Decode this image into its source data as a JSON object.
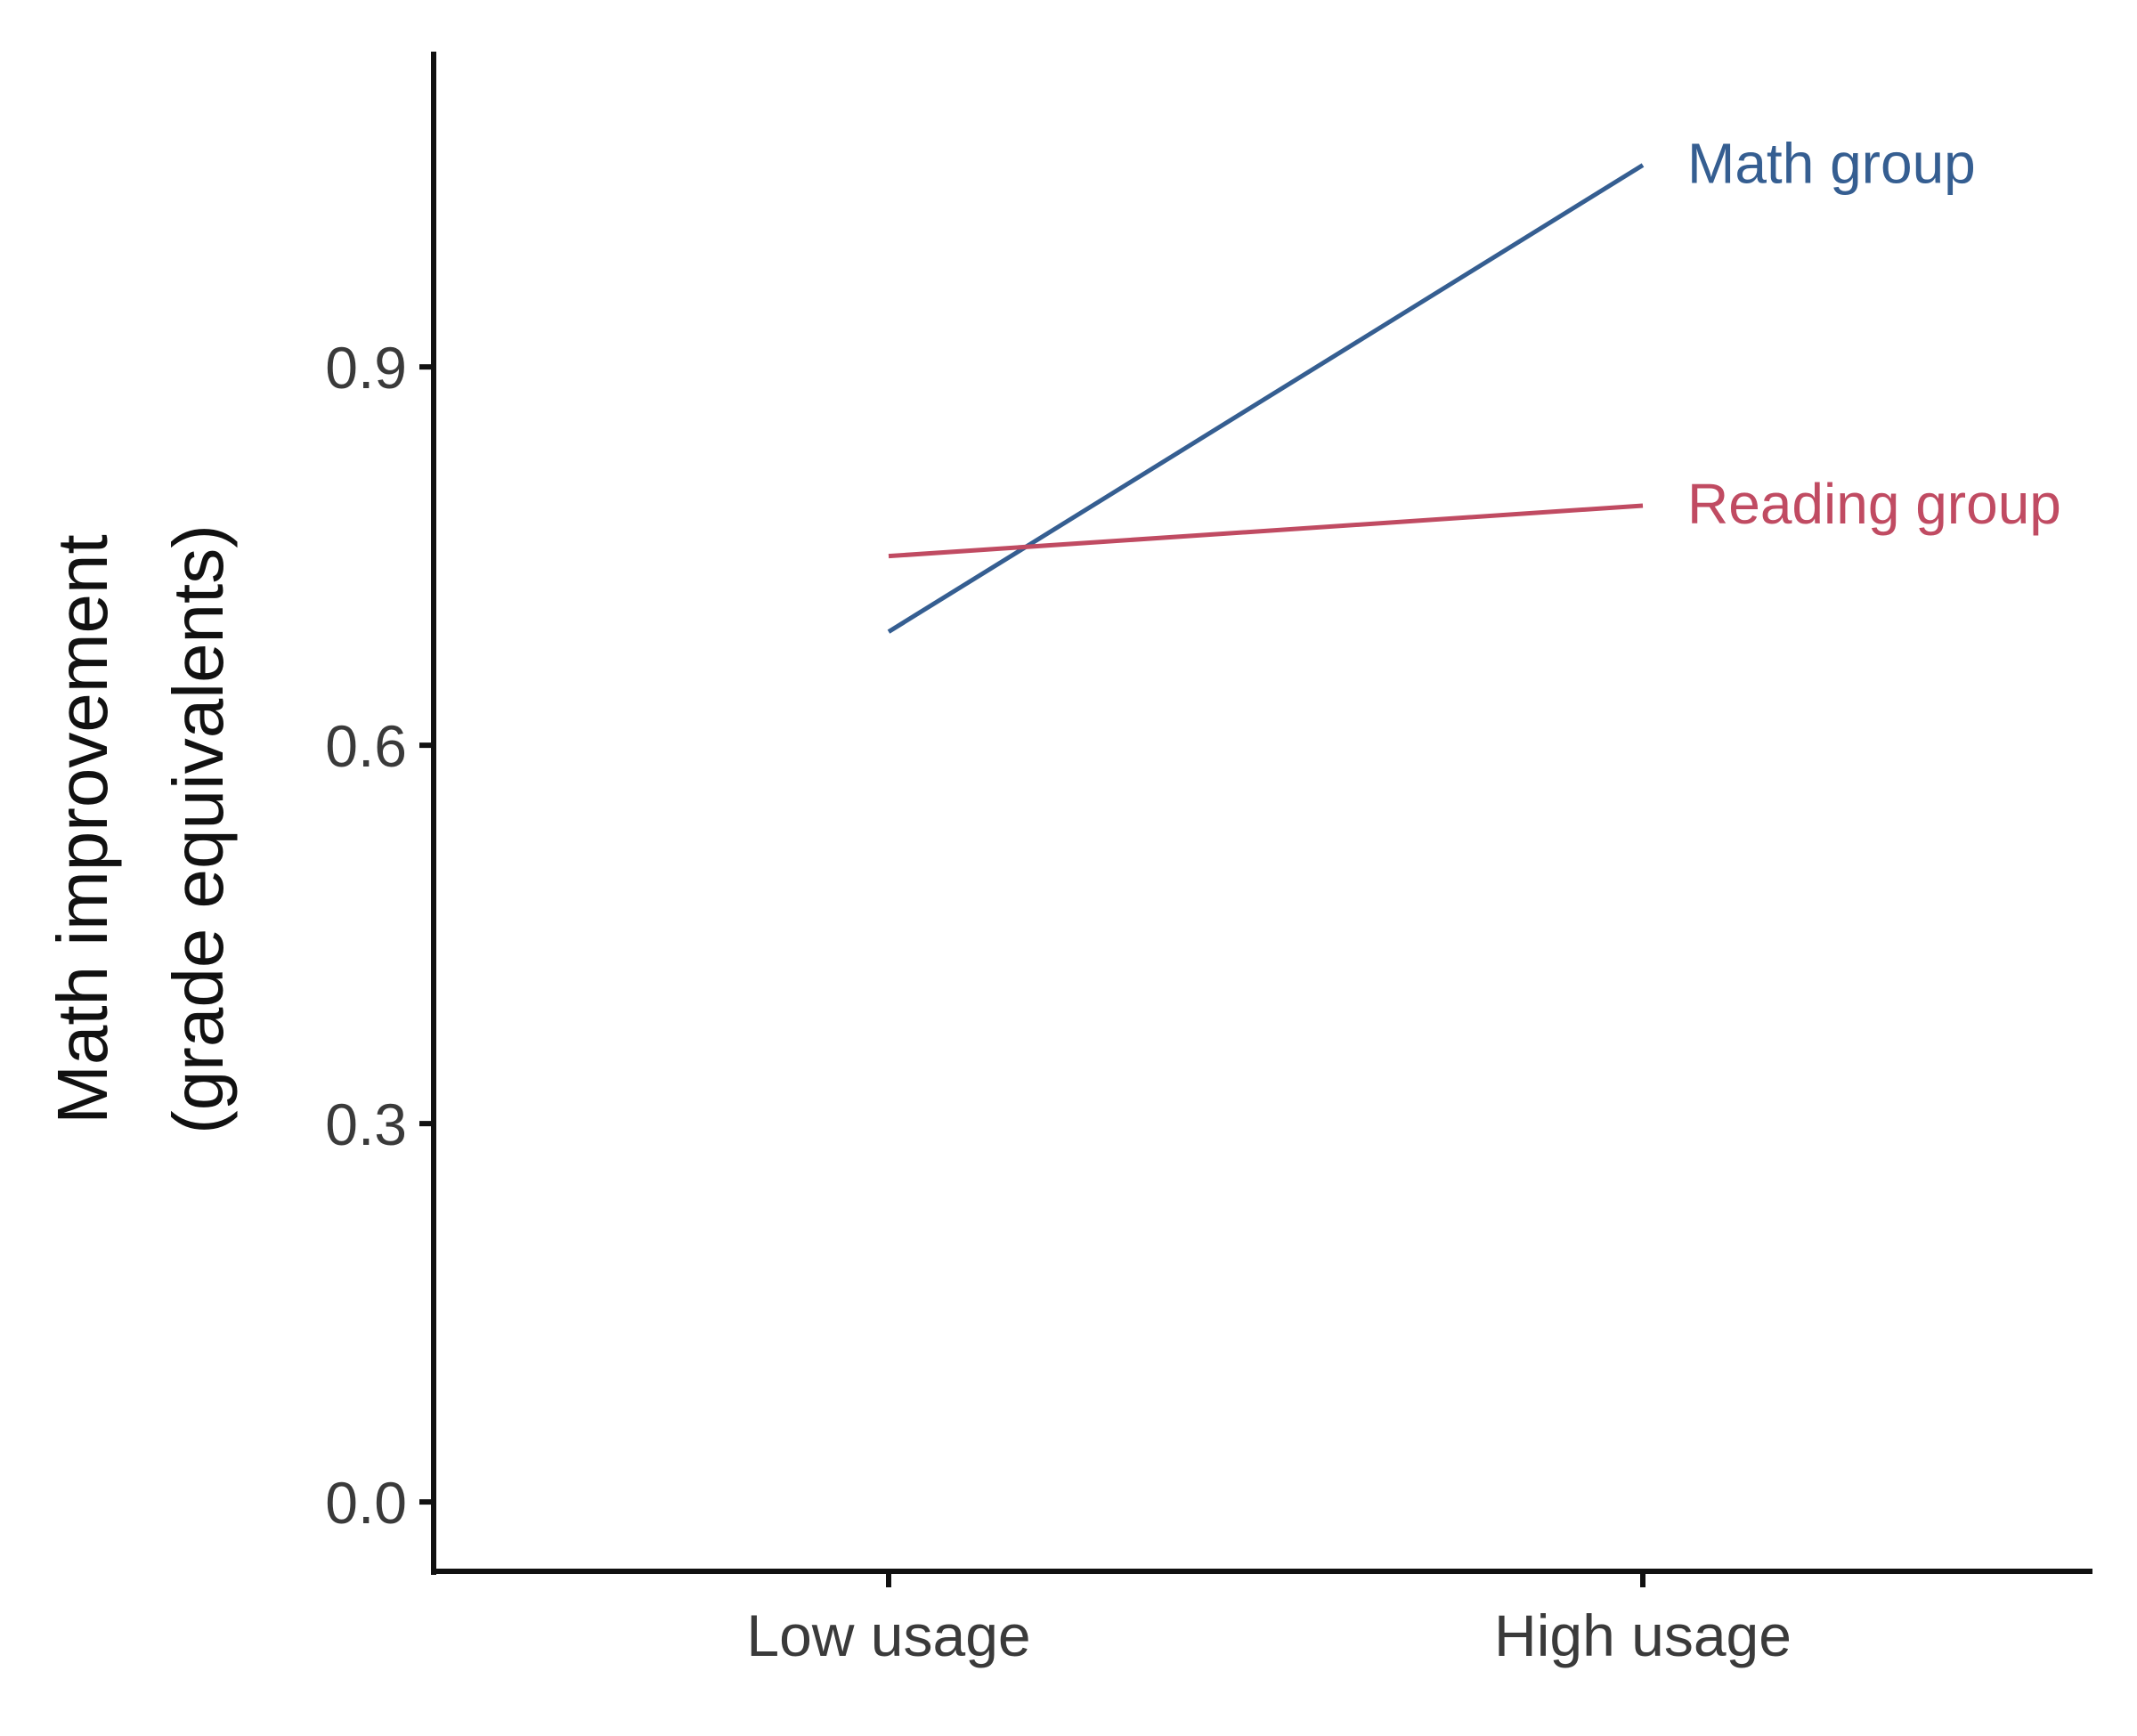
{
  "chart_data": {
    "type": "line",
    "title": "",
    "xlabel": "",
    "ylabel": [
      "Math improvement",
      "(grade equivalents)"
    ],
    "categories": [
      "Low usage",
      "High usage"
    ],
    "series": [
      {
        "name": "Math group",
        "values": [
          0.69,
          1.06
        ],
        "color": "#355e91"
      },
      {
        "name": "Reading group",
        "values": [
          0.75,
          0.79
        ],
        "color": "#c04b62"
      }
    ],
    "yticks": [
      0.0,
      0.3,
      0.6,
      0.9
    ],
    "ytick_labels": [
      "0.0",
      "0.3",
      "0.6",
      "0.9"
    ],
    "ylim": [
      -0.055,
      1.15
    ],
    "grid": false,
    "legend": "direct labels at line ends"
  }
}
